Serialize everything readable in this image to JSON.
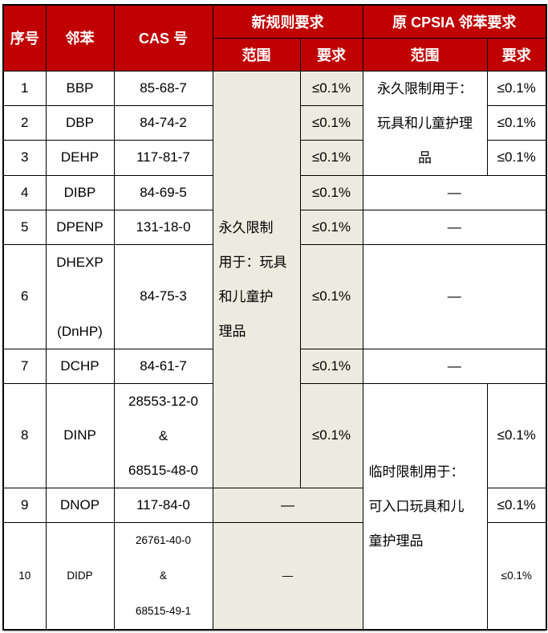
{
  "colors": {
    "header_bg": "#C00000",
    "header_text": "#FFFFFF",
    "accent_bg": "#EDEBE0",
    "border": "#000000",
    "body_text": "#000000"
  },
  "header": {
    "no": "序号",
    "phthalate": "邻苯",
    "cas": "CAS 号",
    "new_group": "新规则要求",
    "cpsia_group": "原 CPSIA 邻苯要求",
    "scope": "范围",
    "req": "要求"
  },
  "merged_cells": {
    "new_scope_rows_1_8": "永久限制\n用于：玩具\n和儿童护\n理品",
    "cpsia_scope_rows_1_3": "永久限制用于：\n玩具和儿童护理\n品",
    "cpsia_scope_rows_8_10": "临时限制用于：\n可入口玩具和儿\n童护理品",
    "dash": "—"
  },
  "rows": [
    {
      "no": "1",
      "name": "BBP",
      "cas": "85-68-7",
      "new_req": "≤0.1%",
      "cpsia_req": "≤0.1%"
    },
    {
      "no": "2",
      "name": "DBP",
      "cas": "84-74-2",
      "new_req": "≤0.1%",
      "cpsia_req": "≤0.1%"
    },
    {
      "no": "3",
      "name": "DEHP",
      "cas": "117-81-7",
      "new_req": "≤0.1%",
      "cpsia_req": "≤0.1%"
    },
    {
      "no": "4",
      "name": "DIBP",
      "cas": "84-69-5",
      "new_req": "≤0.1%",
      "cpsia_scope_req": "—"
    },
    {
      "no": "5",
      "name": "DPENP",
      "cas": "131-18-0",
      "new_req": "≤0.1%",
      "cpsia_scope_req": "—"
    },
    {
      "no": "6",
      "name": "DHEXP\n\n(DnHP)",
      "cas": "84-75-3",
      "new_req": "≤0.1%",
      "cpsia_scope_req": "—"
    },
    {
      "no": "7",
      "name": "DCHP",
      "cas": "84-61-7",
      "new_req": "≤0.1%",
      "cpsia_scope_req": "—"
    },
    {
      "no": "8",
      "name": "DINP",
      "cas": "28553-12-0\n&\n68515-48-0",
      "new_req": "≤0.1%",
      "cpsia_req": "≤0.1%"
    },
    {
      "no": "9",
      "name": "DNOP",
      "cas": "117-84-0",
      "new_scope_req": "—",
      "cpsia_req": "≤0.1%"
    },
    {
      "no": "10",
      "name": "DIDP",
      "cas": "26761-40-0\n&\n68515-49-1",
      "new_scope_req": "—",
      "cpsia_req": "≤0.1%"
    }
  ]
}
